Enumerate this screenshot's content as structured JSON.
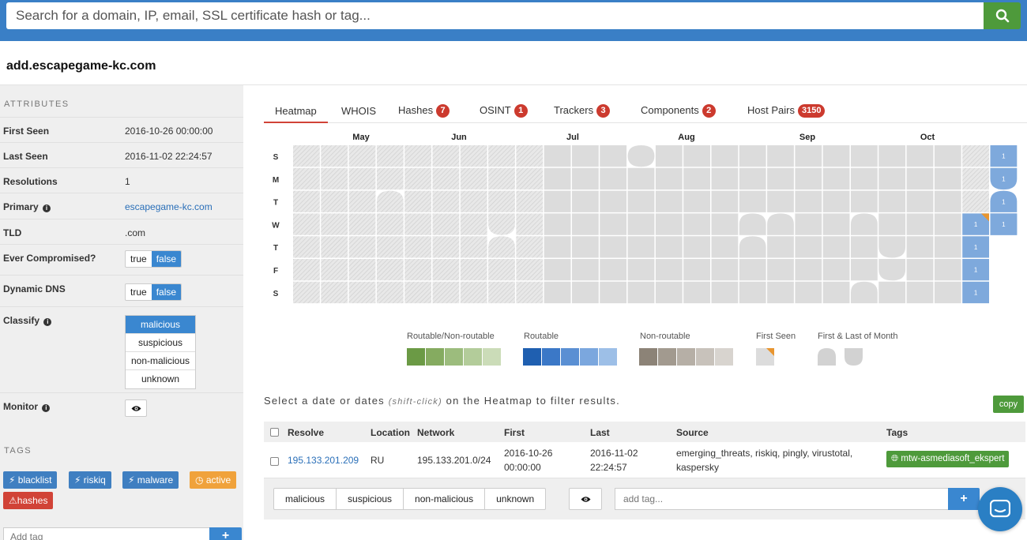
{
  "search": {
    "placeholder": "Search for a domain, IP, email, SSL certificate hash or tag..."
  },
  "domain": "add.escapegame-kc.com",
  "attributes": {
    "heading": "ATTRIBUTES",
    "first_seen": {
      "label": "First Seen",
      "value": "2016-10-26 00:00:00"
    },
    "last_seen": {
      "label": "Last Seen",
      "value": "2016-11-02 22:24:57"
    },
    "resolutions": {
      "label": "Resolutions",
      "value": "1"
    },
    "primary": {
      "label": "Primary",
      "value": "escapegame-kc.com"
    },
    "tld": {
      "label": "TLD",
      "value": ".com"
    },
    "ever_compromised": {
      "label": "Ever Compromised?",
      "true_label": "true",
      "false_label": "false",
      "selected": "false"
    },
    "dynamic_dns": {
      "label": "Dynamic DNS",
      "true_label": "true",
      "false_label": "false",
      "selected": "false"
    },
    "classify": {
      "label": "Classify",
      "options": [
        "malicious",
        "suspicious",
        "non-malicious",
        "unknown"
      ],
      "selected": "malicious"
    },
    "monitor": {
      "label": "Monitor"
    }
  },
  "tags": {
    "heading": "TAGS",
    "items": [
      {
        "label": "blacklist",
        "color": "#3f7fc1",
        "icon": "bolt-icon"
      },
      {
        "label": "riskiq",
        "color": "#3f7fc1",
        "icon": "bolt-icon"
      },
      {
        "label": "malware",
        "color": "#3f7fc1",
        "icon": "bolt-icon"
      },
      {
        "label": "active",
        "color": "#f0a23b",
        "icon": "clock-icon"
      },
      {
        "label": "hashes",
        "color": "#d14337",
        "icon": "warning-icon"
      }
    ],
    "add_placeholder": "Add tag"
  },
  "tabs": [
    {
      "label": "Heatmap",
      "badge": "",
      "active": true
    },
    {
      "label": "WHOIS",
      "badge": ""
    },
    {
      "label": "Hashes",
      "badge": "7"
    },
    {
      "label": "OSINT",
      "badge": "1"
    },
    {
      "label": "Trackers",
      "badge": "3"
    },
    {
      "label": "Components",
      "badge": "2"
    },
    {
      "label": "Host Pairs",
      "badge": "3150"
    }
  ],
  "heatmap": {
    "months": [
      "May",
      "Jun",
      "Jul",
      "Aug",
      "Sep",
      "Oct"
    ],
    "days": [
      "S",
      "M",
      "T",
      "W",
      "T",
      "F",
      "S"
    ],
    "cell_count_label": "1",
    "colors": {
      "empty": "#dcdcdc",
      "hit": "#7ea9dc",
      "first_seen_mark": "#e8952f"
    }
  },
  "legend": {
    "routable_nonroutable": {
      "label": "Routable/Non-routable",
      "colors": [
        "#6b9a45",
        "#85ab60",
        "#9cbc7d",
        "#b3cc9a",
        "#cbdcb8"
      ]
    },
    "routable": {
      "label": "Routable",
      "colors": [
        "#1f5fb0",
        "#3b78c7",
        "#5a8fd3",
        "#7ba7de",
        "#9dbfe7"
      ]
    },
    "nonroutable": {
      "label": "Non-routable",
      "colors": [
        "#8c8377",
        "#a29a8f",
        "#b6afa6",
        "#c8c2bb",
        "#d8d4cf"
      ]
    },
    "first_seen": {
      "label": "First Seen"
    },
    "first_last_month": {
      "label": "First & Last of Month"
    }
  },
  "hint": {
    "prefix": "Select a date or dates",
    "italic": "(shift-click)",
    "suffix": "on the Heatmap to filter results."
  },
  "copy_label": "copy",
  "table": {
    "headers": {
      "resolve": "Resolve",
      "location": "Location",
      "network": "Network",
      "first": "First",
      "last": "Last",
      "source": "Source",
      "tags": "Tags"
    },
    "rows": [
      {
        "resolve": "195.133.201.209",
        "location": "RU",
        "network": "195.133.201.0/24",
        "first_date": "2016-10-26",
        "first_time": "00:00:00",
        "last_date": "2016-11-02",
        "last_time": "22:24:57",
        "source_line1": "emerging_threats, riskiq, pingly, virustotal,",
        "source_line2": "kaspersky",
        "tag": "mtw-asmediasoft_ekspert"
      }
    ]
  },
  "actions": {
    "classify": [
      "malicious",
      "suspicious",
      "non-malicious",
      "unknown"
    ],
    "add_tag_placeholder": "add tag..."
  }
}
